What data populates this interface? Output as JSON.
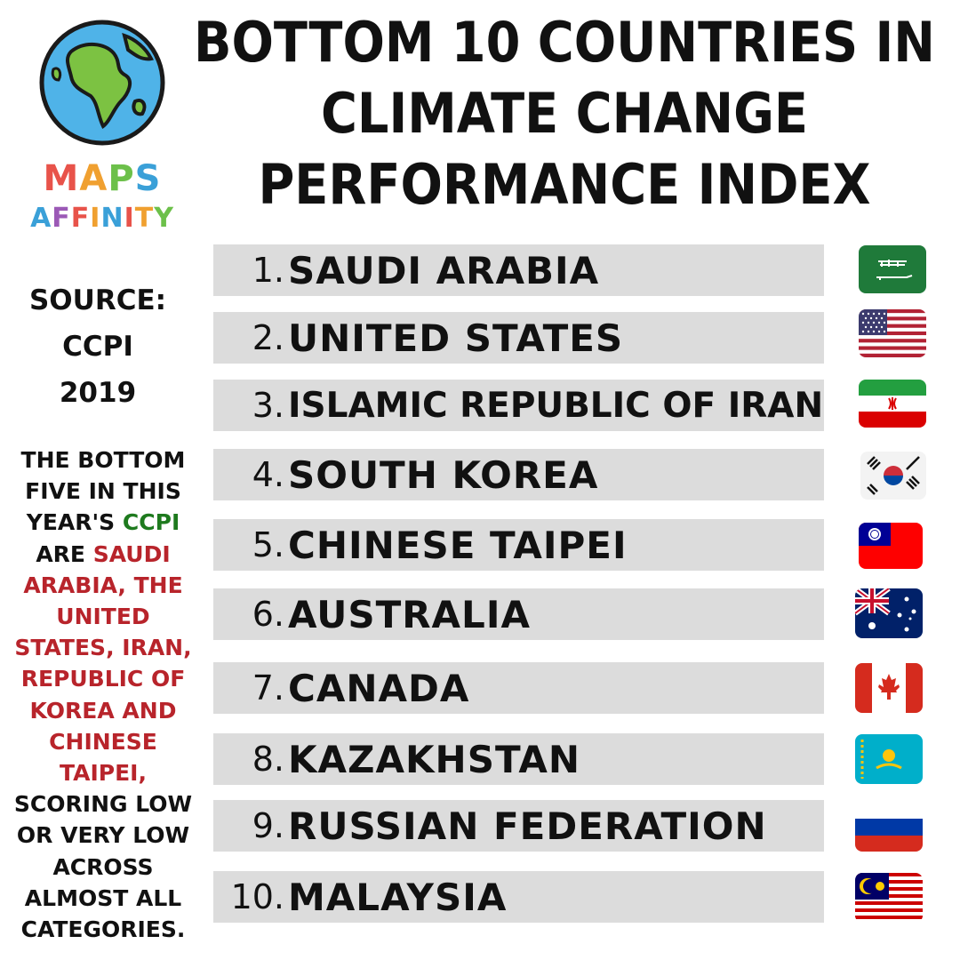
{
  "brand": {
    "line1": "MAPS",
    "line2": "AFFINITY",
    "logo_icon": "globe-icon",
    "letter_colors": [
      "#e8534a",
      "#f0a030",
      "#6cc04a",
      "#3aa0d8",
      "#9b59b6",
      "#e8534a",
      "#f0a030",
      "#3aa0d8"
    ]
  },
  "title": {
    "line1": "BOTTOM 10 COUNTRIES IN",
    "line2": "CLIMATE CHANGE",
    "line3": "PERFORMANCE INDEX"
  },
  "source": {
    "label": "SOURCE:",
    "name": "CCPI",
    "year": "2019"
  },
  "note": {
    "p1": "THE BOTTOM FIVE IN THIS YEAR'S",
    "p2": "CCPI",
    "p3": "ARE",
    "p4": "SAUDI ARABIA, THE UNITED STATES,  IRAN, REPUBLIC OF KOREA AND CHINESE TAIPEI,",
    "p5": "SCORING LOW OR VERY LOW ACROSS ALMOST ALL CATEGORIES."
  },
  "ranking": [
    {
      "rank": "1.",
      "country": "SAUDI ARABIA",
      "flag": "saudi-arabia-flag-icon"
    },
    {
      "rank": "2.",
      "country": "UNITED STATES",
      "flag": "usa-flag-icon"
    },
    {
      "rank": "3.",
      "country": "ISLAMIC REPUBLIC OF IRAN",
      "flag": "iran-flag-icon"
    },
    {
      "rank": "4.",
      "country": "SOUTH KOREA",
      "flag": "south-korea-flag-icon"
    },
    {
      "rank": "5.",
      "country": "CHINESE TAIPEI",
      "flag": "taiwan-flag-icon"
    },
    {
      "rank": "6.",
      "country": "AUSTRALIA",
      "flag": "australia-flag-icon"
    },
    {
      "rank": "7.",
      "country": "CANADA",
      "flag": "canada-flag-icon"
    },
    {
      "rank": "8.",
      "country": "KAZAKHSTAN",
      "flag": "kazakhstan-flag-icon"
    },
    {
      "rank": "9.",
      "country": "RUSSIAN FEDERATION",
      "flag": "russia-flag-icon"
    },
    {
      "rank": "10.",
      "country": "MALAYSIA",
      "flag": "malaysia-flag-icon"
    }
  ],
  "colors": {
    "row_background": "#dcdcdc",
    "highlight_green": "#1e7a1e",
    "highlight_red": "#b8242b"
  }
}
